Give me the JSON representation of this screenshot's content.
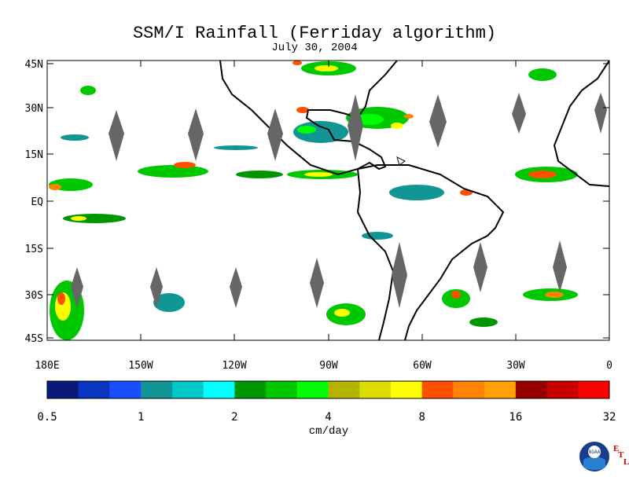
{
  "title": "SSM/I Rainfall (Ferriday algorithm)",
  "date": "July 30, 2004",
  "lat_labels": [
    "45N",
    "30N",
    "15N",
    "EQ",
    "15S",
    "30S",
    "45S"
  ],
  "lon_labels": [
    "180E",
    "150W",
    "120W",
    "90W",
    "60W",
    "30W",
    "0"
  ],
  "colorbar": {
    "units": "cm/day",
    "tick_labels": [
      "0.5",
      "1",
      "2",
      "4",
      "8",
      "16",
      "32"
    ],
    "colors": [
      "#0a1a7a",
      "#0a35c0",
      "#1650ff",
      "#119595",
      "#00c8c8",
      "#00ffff",
      "#009600",
      "#00c800",
      "#00ff00",
      "#b4b400",
      "#dcdc00",
      "#ffff00",
      "#ff5000",
      "#ff8200",
      "#ffa000",
      "#960000",
      "#c80000",
      "#ff0000"
    ]
  },
  "logo": {
    "text": "NOAA",
    "letters": [
      "E",
      "T",
      "L"
    ]
  }
}
